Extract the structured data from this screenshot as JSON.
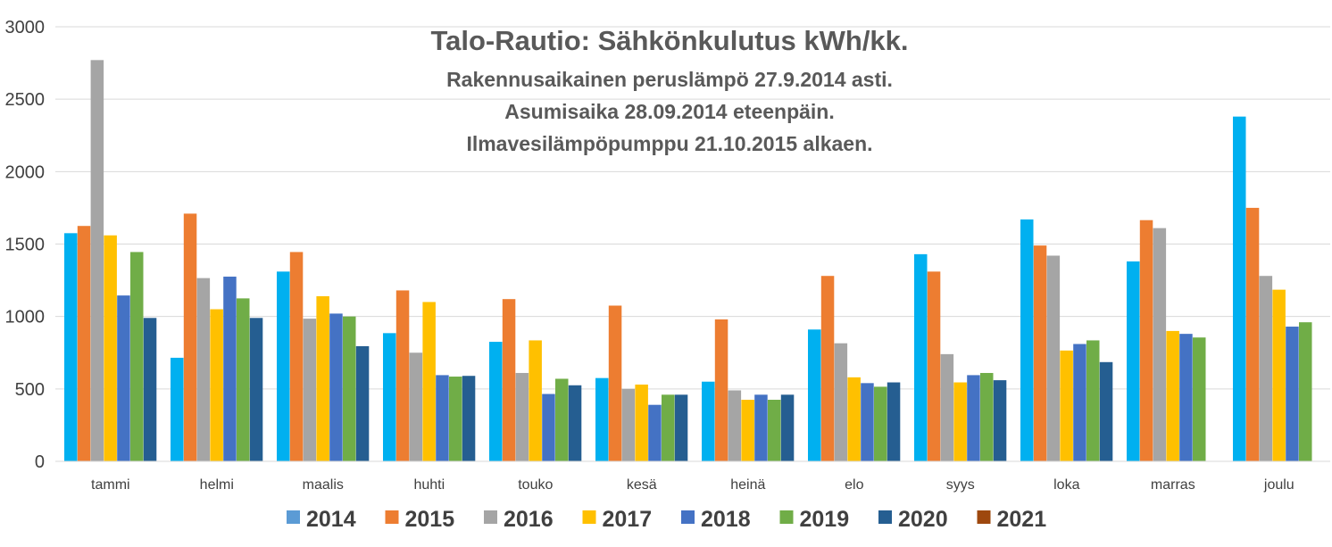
{
  "chart_data": {
    "type": "bar",
    "title_lines": [
      "Talo-Rautio: Sähkönkulutus kWh/kk.",
      "Rakennusaikainen peruslämpö 27.9.2014 asti.",
      "Asumisaika 28.09.2014 eteenpäin.",
      "Ilmavesilämpöpumppu 21.10.2015 alkaen."
    ],
    "categories": [
      "tammi",
      "helmi",
      "maalis",
      "huhti",
      "touko",
      "kesä",
      "heinä",
      "elo",
      "syys",
      "loka",
      "marras",
      "joulu"
    ],
    "ylim": [
      0,
      3000
    ],
    "yticks": [
      0,
      500,
      1000,
      1500,
      2000,
      2500,
      3000
    ],
    "grid": true,
    "legend_position": "bottom",
    "series": [
      {
        "name": "2014",
        "color": "#00b0f0",
        "legend_color": "#5b9bd5",
        "values": [
          1575,
          715,
          1310,
          885,
          825,
          575,
          550,
          910,
          1430,
          1670,
          1380,
          2380
        ]
      },
      {
        "name": "2015",
        "color": "#ed7d31",
        "values": [
          1625,
          1710,
          1445,
          1180,
          1120,
          1075,
          980,
          1280,
          1310,
          1490,
          1665,
          1750
        ]
      },
      {
        "name": "2016",
        "color": "#a5a5a5",
        "values": [
          2770,
          1265,
          985,
          750,
          610,
          500,
          490,
          815,
          740,
          1420,
          1610,
          1280
        ]
      },
      {
        "name": "2017",
        "color": "#ffc000",
        "values": [
          1560,
          1050,
          1140,
          1100,
          835,
          530,
          425,
          580,
          545,
          765,
          900,
          1185
        ]
      },
      {
        "name": "2018",
        "color": "#4472c4",
        "values": [
          1145,
          1275,
          1020,
          595,
          465,
          390,
          460,
          540,
          595,
          810,
          880,
          930
        ]
      },
      {
        "name": "2019",
        "color": "#70ad47",
        "values": [
          1445,
          1125,
          1000,
          585,
          570,
          460,
          425,
          515,
          610,
          835,
          855,
          960
        ]
      },
      {
        "name": "2020",
        "color": "#255e91",
        "values": [
          990,
          990,
          795,
          590,
          525,
          460,
          460,
          545,
          560,
          685,
          null,
          null
        ]
      },
      {
        "name": "2021",
        "color": "#9e480e",
        "values": [
          null,
          null,
          null,
          null,
          null,
          null,
          null,
          null,
          null,
          null,
          null,
          null
        ]
      }
    ]
  }
}
